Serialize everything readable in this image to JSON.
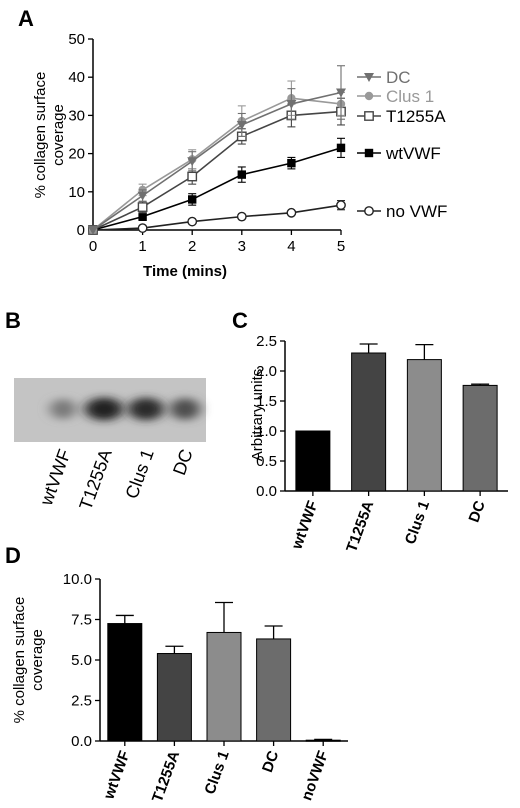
{
  "figure": {
    "panels": {
      "a": "A",
      "b": "B",
      "c": "C",
      "d": "D"
    },
    "colors": {
      "wtVWF": "#000000",
      "T1255A": "#444444",
      "Clus 1": "#8c8c8c",
      "DC": "#6c6c6c",
      "noVWF": "#1a1a1a",
      "line_DC": "#707070",
      "line_Clus1": "#999999",
      "line_T1255A": "#454545",
      "line_wtVWF": "#000000",
      "line_noVWF": "#222222"
    },
    "blot": {
      "lanes": [
        "wtVWF",
        "T1255A",
        "Clus 1",
        "DC"
      ],
      "band_intensity": [
        0.35,
        0.85,
        0.8,
        0.6
      ]
    }
  },
  "chart_data": [
    {
      "id": "A",
      "type": "line",
      "xlabel": "Time (mins)",
      "ylabel": "% collagen surface coverage",
      "xlim": [
        0,
        5
      ],
      "ylim": [
        0,
        50
      ],
      "xticks": [
        "0",
        "1",
        "2",
        "3",
        "4",
        "5"
      ],
      "yticks": [
        "0",
        "10",
        "20",
        "30",
        "40",
        "50"
      ],
      "x": [
        0,
        1,
        2,
        3,
        4,
        5
      ],
      "legend_placement": "right",
      "series": [
        {
          "name": "DC",
          "marker": "triangle-down",
          "color_key": "line_DC",
          "values": [
            0,
            9,
            18,
            27.5,
            33,
            36
          ],
          "err": [
            0,
            1.5,
            2.5,
            3,
            4,
            7
          ]
        },
        {
          "name": "Clus 1",
          "marker": "circle-filled",
          "color_key": "line_Clus1",
          "values": [
            0,
            10.5,
            18.5,
            28.5,
            34.5,
            33
          ],
          "err": [
            0,
            1.5,
            2.5,
            4,
            4.5,
            3
          ]
        },
        {
          "name": "T1255A",
          "marker": "square-open",
          "color_key": "line_T1255A",
          "values": [
            0,
            6,
            14,
            24.5,
            30,
            31
          ],
          "err": [
            0,
            1.5,
            2,
            2,
            3,
            3.5
          ]
        },
        {
          "name": "wtVWF",
          "marker": "square-filled",
          "color_key": "line_wtVWF",
          "values": [
            0,
            3.5,
            8,
            14.5,
            17.5,
            21.5
          ],
          "err": [
            0,
            1,
            1.5,
            2,
            1.5,
            2.5
          ]
        },
        {
          "name": "no VWF",
          "marker": "circle-open",
          "color_key": "line_noVWF",
          "values": [
            0,
            0.5,
            2.2,
            3.5,
            4.5,
            6.5
          ],
          "err": [
            0,
            0.3,
            0.4,
            0.4,
            0.5,
            1.2
          ]
        }
      ]
    },
    {
      "id": "C",
      "type": "bar",
      "ylabel": "Arbitrary units",
      "ylim": [
        0,
        2.5
      ],
      "yticks": [
        "0.0",
        "0.5",
        "1.0",
        "1.5",
        "2.0",
        "2.5"
      ],
      "categories": [
        "wtVWF",
        "T1255A",
        "Clus 1",
        "DC"
      ],
      "values": [
        1.0,
        2.3,
        2.19,
        1.76
      ],
      "err": [
        0,
        0.15,
        0.25,
        0.02
      ]
    },
    {
      "id": "D",
      "type": "bar",
      "ylabel": "% collagen surface coverage",
      "ylim": [
        0,
        10
      ],
      "yticks": [
        "0.0",
        "2.5",
        "5.0",
        "7.5",
        "10.0"
      ],
      "categories": [
        "wtVWF",
        "T1255A",
        "Clus 1",
        "DC",
        "noVWF"
      ],
      "values": [
        7.25,
        5.4,
        6.7,
        6.3,
        0.05
      ],
      "err": [
        0.5,
        0.45,
        1.85,
        0.8,
        0.05
      ]
    }
  ]
}
